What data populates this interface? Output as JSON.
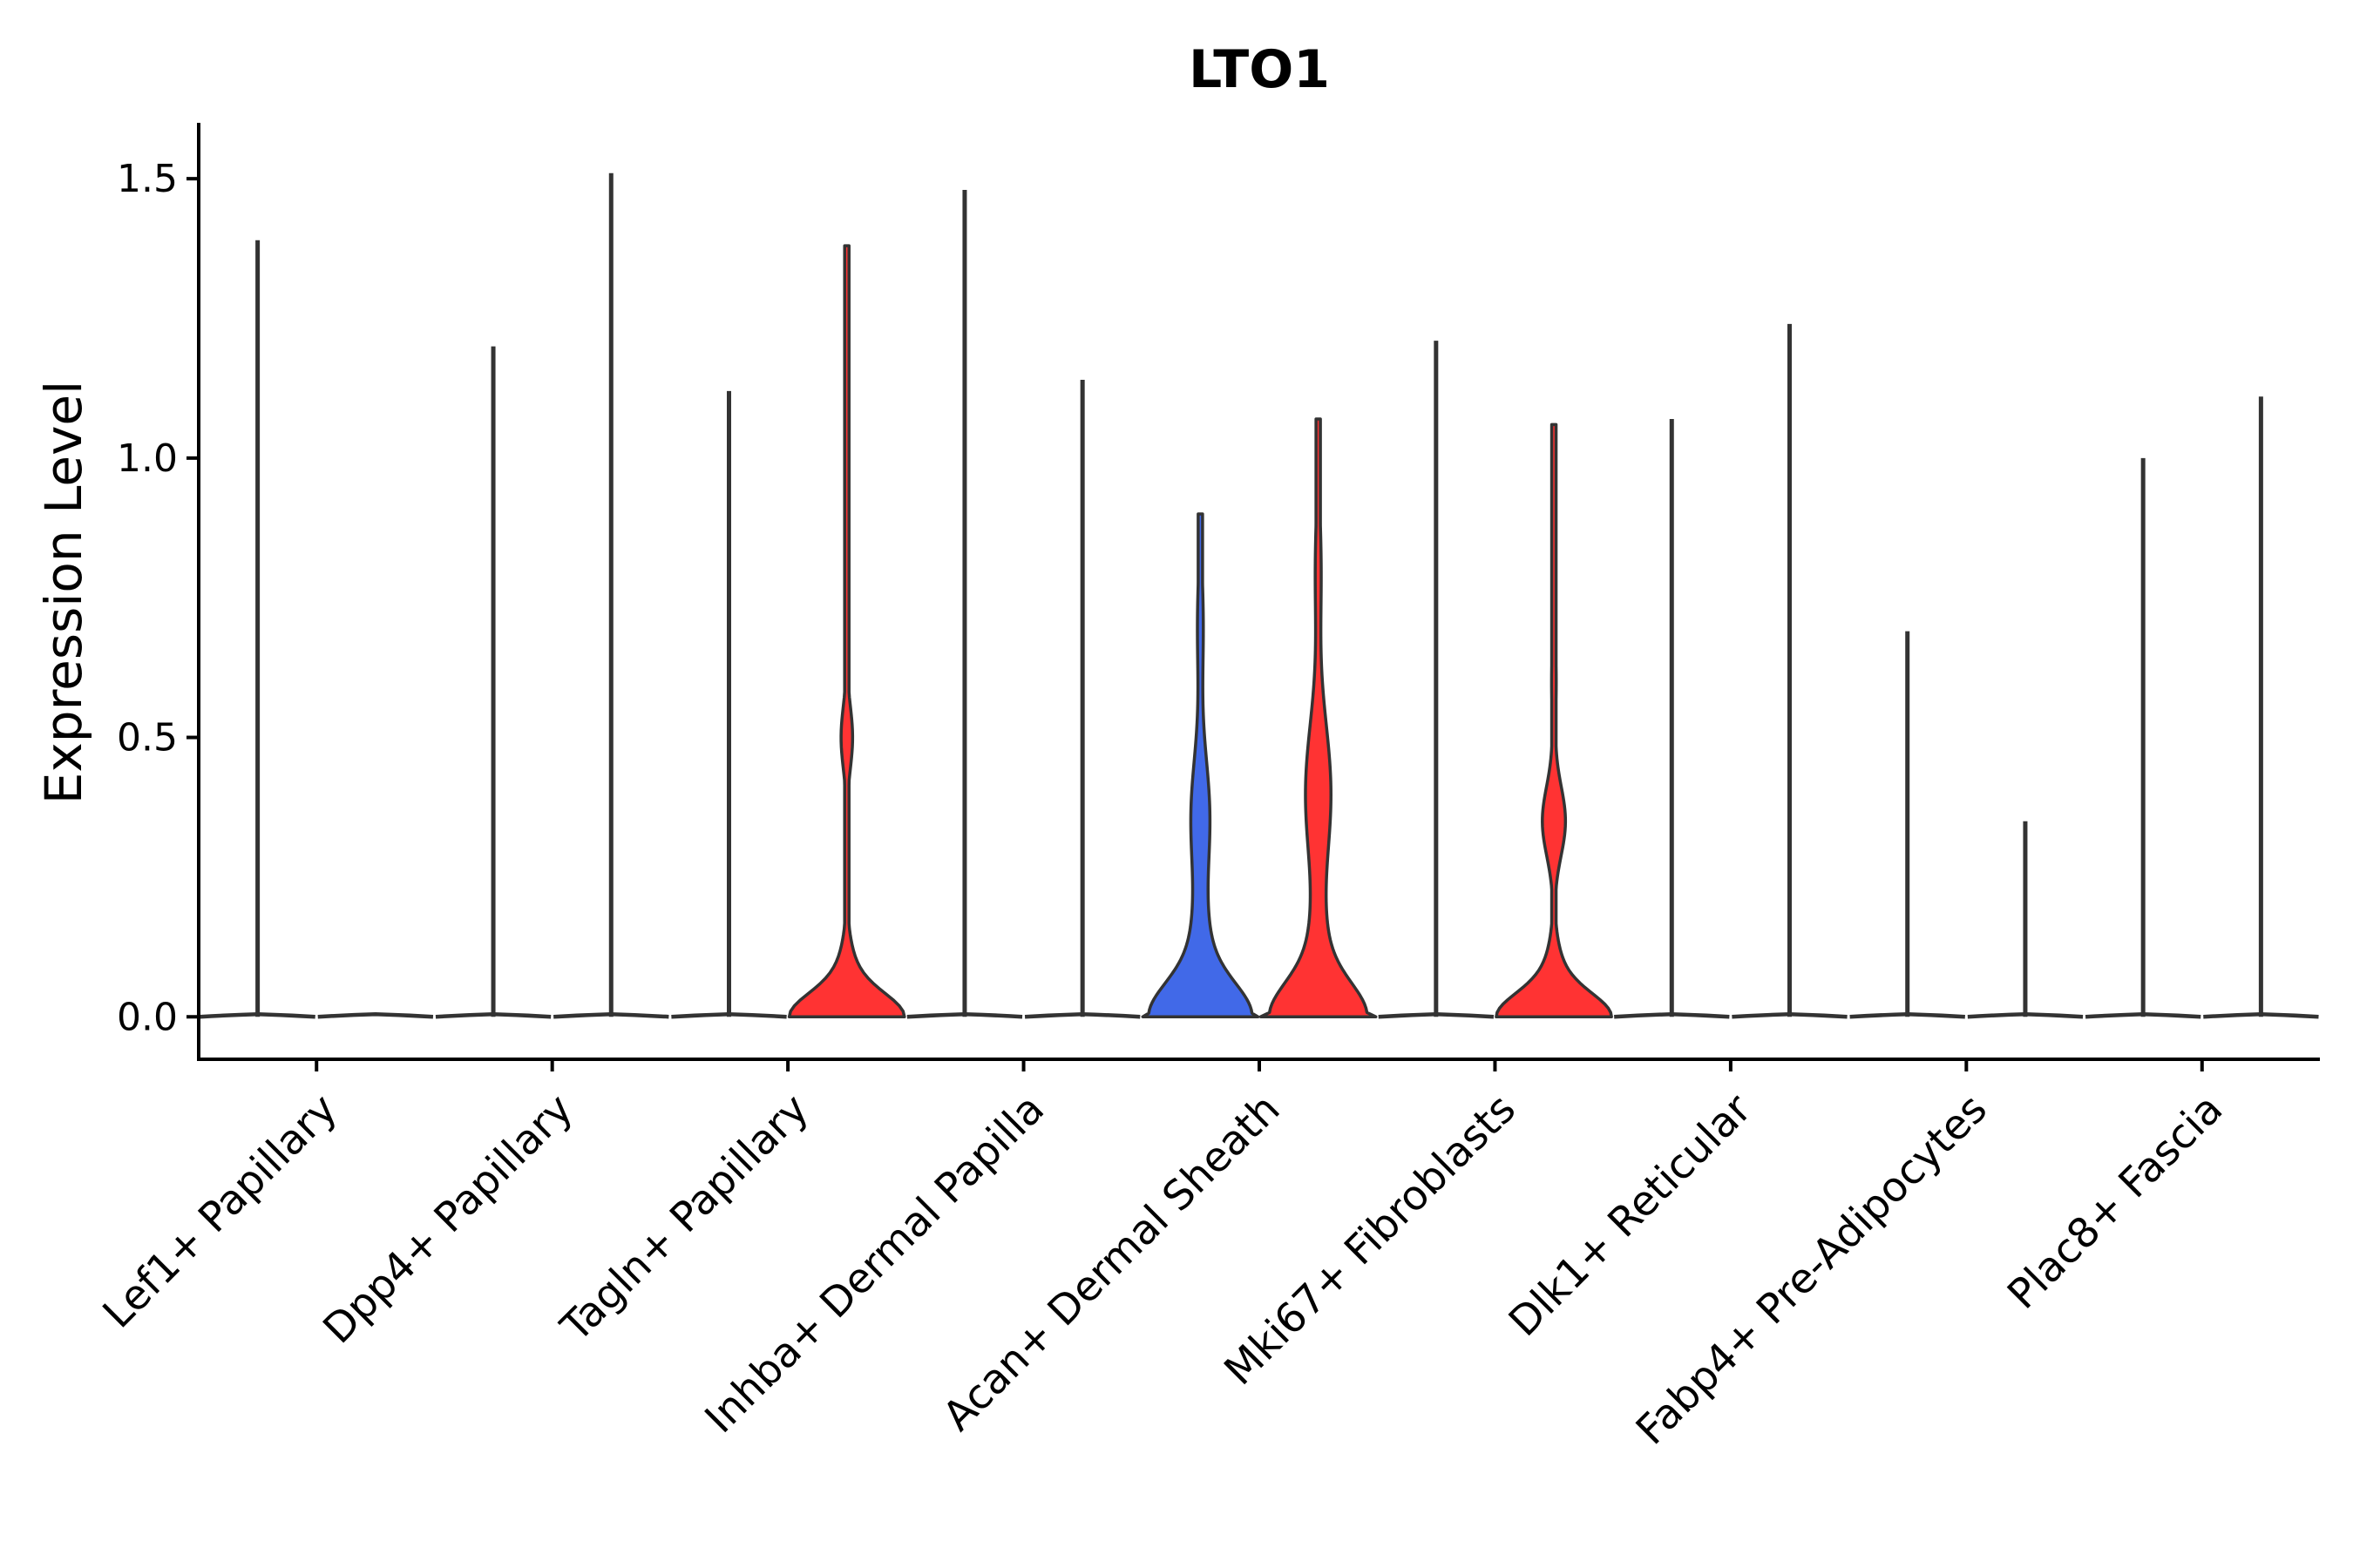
{
  "chart_data": {
    "type": "violin",
    "title": "LTO1",
    "ylabel": "Expression Level",
    "xlabel": "",
    "ylim": [
      -0.076,
      1.6
    ],
    "yticks": [
      0.0,
      0.5,
      1.0,
      1.5
    ],
    "ytick_labels": [
      "0.0",
      "0.5",
      "1.0",
      "1.5"
    ],
    "grid": false,
    "legend": "none",
    "colors": {
      "group_a": "#4169e8",
      "group_b": "#ff3333",
      "outline": "#333333"
    },
    "categories": [
      "Lef1+ Papillary",
      "Dpp4+ Papillary",
      "Tagln+ Papillary",
      "Inhba+ Dermal Papilla",
      "Acan+ Dermal Sheath",
      "Mki67+ Fibroblasts",
      "Dlk1+ Reticular",
      "Fabp4+ Pre-Adipocytes",
      "Plac8+ Fascia"
    ],
    "series": [
      {
        "color": "#4169e8",
        "max_values": [
          1.39,
          1.2,
          1.12,
          1.48,
          0.9,
          1.21,
          1.07,
          0.69,
          1.0
        ],
        "filled": [
          false,
          false,
          false,
          false,
          true,
          false,
          false,
          false,
          false
        ]
      },
      {
        "color": "#ff3333",
        "max_values": [
          0.0,
          1.51,
          1.38,
          1.14,
          1.07,
          1.06,
          1.24,
          0.35,
          1.11
        ],
        "filled": [
          false,
          false,
          true,
          false,
          true,
          true,
          false,
          false,
          false
        ]
      }
    ]
  }
}
